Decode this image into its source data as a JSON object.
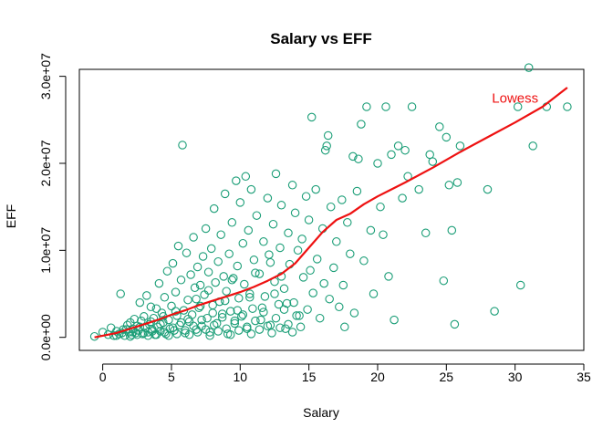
{
  "colors": {
    "points": "#1b9e77",
    "lowess": "#ee1111",
    "axis": "#000000"
  },
  "chart_data": {
    "type": "scatter",
    "title": "Salary vs EFF",
    "xlabel": "Salary",
    "ylabel": "EFF",
    "xlim": [
      -1.7,
      35.0
    ],
    "ylim": [
      -1500000,
      30800000
    ],
    "x_ticks": [
      0,
      5,
      10,
      15,
      20,
      25,
      30,
      35
    ],
    "x_tick_labels": [
      "0",
      "5",
      "10",
      "15",
      "20",
      "25",
      "30",
      "35"
    ],
    "y_ticks": [
      0,
      10000000,
      20000000,
      30000000
    ],
    "y_tick_labels": [
      "0.0e+00",
      "1.0e+07",
      "2.0e+07",
      "3.0e+07"
    ],
    "grid": false,
    "annotations": [
      {
        "text": "Lowess",
        "x": 30.0,
        "y": 27500000
      }
    ],
    "series": [
      {
        "kind": "points",
        "points": [
          [
            -0.6,
            100000.0
          ],
          [
            0.0,
            600000.0
          ],
          [
            0.4,
            300000.0
          ],
          [
            0.6,
            1100000.0
          ],
          [
            0.8,
            200000.0
          ],
          [
            1.0,
            700000.0
          ],
          [
            1.2,
            400000.0
          ],
          [
            1.3,
            5000000.0
          ],
          [
            1.5,
            900000.0
          ],
          [
            1.6,
            200000.0
          ],
          [
            1.8,
            1400000.0
          ],
          [
            1.9,
            600000.0
          ],
          [
            2.0,
            1700000.0
          ],
          [
            2.1,
            300000.0
          ],
          [
            2.2,
            1000000.0
          ],
          [
            2.3,
            2100000.0
          ],
          [
            2.4,
            500000.0
          ],
          [
            2.5,
            1300000.0
          ],
          [
            2.6,
            800000.0
          ],
          [
            2.7,
            4000000.0
          ],
          [
            2.8,
            1900000.0
          ],
          [
            2.9,
            400000.0
          ],
          [
            3.0,
            2400000.0
          ],
          [
            3.1,
            1100000.0
          ],
          [
            3.2,
            4800000.0
          ],
          [
            3.3,
            600000.0
          ],
          [
            3.4,
            1500000.0
          ],
          [
            3.5,
            3500000.0
          ],
          [
            3.6,
            900000.0
          ],
          [
            3.7,
            2200000.0
          ],
          [
            3.8,
            300000.0
          ],
          [
            3.9,
            3300000.0
          ],
          [
            4.0,
            1200000.0
          ],
          [
            4.1,
            6200000.0
          ],
          [
            4.2,
            700000.0
          ],
          [
            4.3,
            2800000.0
          ],
          [
            4.4,
            1700000.0
          ],
          [
            4.5,
            4600000.0
          ],
          [
            4.6,
            400000.0
          ],
          [
            4.7,
            7600000.0
          ],
          [
            4.8,
            2000000.0
          ],
          [
            4.9,
            1000000.0
          ],
          [
            5.0,
            3600000.0
          ],
          [
            5.1,
            8500000.0
          ],
          [
            5.2,
            800000.0
          ],
          [
            5.3,
            5200000.0
          ],
          [
            5.4,
            2500000.0
          ],
          [
            5.5,
            10500000.0
          ],
          [
            5.6,
            1400000.0
          ],
          [
            5.7,
            6600000.0
          ],
          [
            5.8,
            22100000.0
          ],
          [
            5.9,
            3100000.0
          ],
          [
            6.0,
            500000.0
          ],
          [
            6.1,
            9700000.0
          ],
          [
            6.2,
            4300000.0
          ],
          [
            6.3,
            1800000.0
          ],
          [
            6.4,
            7200000.0
          ],
          [
            6.5,
            2600000.0
          ],
          [
            6.6,
            11500000.0
          ],
          [
            6.7,
            5700000.0
          ],
          [
            6.8,
            900000.0
          ],
          [
            6.9,
            8100000.0
          ],
          [
            7.0,
            3400000.0
          ],
          [
            7.1,
            6000000.0
          ],
          [
            7.2,
            1300000.0
          ],
          [
            7.3,
            9300000.0
          ],
          [
            7.4,
            4900000.0
          ],
          [
            7.5,
            12500000.0
          ],
          [
            7.6,
            2200000.0
          ],
          [
            7.7,
            7500000.0
          ],
          [
            7.8,
            600000.0
          ],
          [
            7.9,
            10200000.0
          ],
          [
            8.0,
            3700000.0
          ],
          [
            8.1,
            14800000.0
          ],
          [
            8.2,
            6300000.0
          ],
          [
            8.3,
            1600000.0
          ],
          [
            8.4,
            8700000.0
          ],
          [
            8.5,
            4100000.0
          ],
          [
            8.6,
            11800000.0
          ],
          [
            8.7,
            2700000.0
          ],
          [
            8.8,
            7000000.0
          ],
          [
            8.9,
            16500000.0
          ],
          [
            9.0,
            5300000.0
          ],
          [
            9.1,
            400000.0
          ],
          [
            9.2,
            9600000.0
          ],
          [
            9.3,
            3000000.0
          ],
          [
            9.4,
            13200000.0
          ],
          [
            9.5,
            6800000.0
          ],
          [
            9.6,
            1900000.0
          ],
          [
            9.7,
            18000000.0
          ],
          [
            9.8,
            8200000.0
          ],
          [
            9.9,
            4500000.0
          ],
          [
            10.0,
            15500000.0
          ],
          [
            10.1,
            2400000.0
          ],
          [
            10.2,
            10800000.0
          ],
          [
            10.3,
            6100000.0
          ],
          [
            10.4,
            18500000.0
          ],
          [
            10.5,
            1000000.0
          ],
          [
            10.6,
            12300000.0
          ],
          [
            10.7,
            5000000.0
          ],
          [
            10.8,
            17000000.0
          ],
          [
            10.9,
            3300000.0
          ],
          [
            11.0,
            8900000.0
          ],
          [
            11.2,
            14000000.0
          ],
          [
            11.4,
            7300000.0
          ],
          [
            11.5,
            2000000.0
          ],
          [
            11.7,
            11000000.0
          ],
          [
            11.8,
            4700000.0
          ],
          [
            12.0,
            16000000.0
          ],
          [
            12.1,
            9500000.0
          ],
          [
            12.2,
            1400000.0
          ],
          [
            12.4,
            13000000.0
          ],
          [
            12.5,
            6400000.0
          ],
          [
            12.6,
            18800000.0
          ],
          [
            12.8,
            3800000.0
          ],
          [
            12.9,
            10300000.0
          ],
          [
            13.0,
            15200000.0
          ],
          [
            13.2,
            5600000.0
          ],
          [
            13.3,
            1000000.0
          ],
          [
            13.5,
            12000000.0
          ],
          [
            13.6,
            8400000.0
          ],
          [
            13.8,
            17500000.0
          ],
          [
            13.9,
            4000000.0
          ],
          [
            14.0,
            14300000.0
          ],
          [
            14.2,
            10000000.0
          ],
          [
            14.3,
            2500000.0
          ],
          [
            14.5,
            11300000.0
          ],
          [
            14.6,
            6900000.0
          ],
          [
            14.8,
            16200000.0
          ],
          [
            14.9,
            3200000.0
          ],
          [
            15.0,
            13500000.0
          ],
          [
            15.1,
            7700000.0
          ],
          [
            15.2,
            25300000.0
          ],
          [
            15.3,
            5100000.0
          ],
          [
            15.5,
            17000000.0
          ],
          [
            15.6,
            9000000.0
          ],
          [
            15.8,
            2200000.0
          ],
          [
            16.0,
            12500000.0
          ],
          [
            16.1,
            6200000.0
          ],
          [
            16.2,
            21500000.0
          ],
          [
            16.3,
            22000000.0
          ],
          [
            16.4,
            23200000.0
          ],
          [
            16.5,
            4400000.0
          ],
          [
            16.6,
            15000000.0
          ],
          [
            16.8,
            8000000.0
          ],
          [
            17.0,
            11000000.0
          ],
          [
            17.2,
            3500000.0
          ],
          [
            17.4,
            15800000.0
          ],
          [
            17.5,
            6000000.0
          ],
          [
            17.6,
            1200000.0
          ],
          [
            17.8,
            13200000.0
          ],
          [
            18.0,
            9600000.0
          ],
          [
            18.2,
            20800000.0
          ],
          [
            18.3,
            2800000.0
          ],
          [
            18.5,
            16800000.0
          ],
          [
            18.6,
            20500000.0
          ],
          [
            18.8,
            24500000.0
          ],
          [
            19.0,
            8800000.0
          ],
          [
            19.2,
            26500000.0
          ],
          [
            19.5,
            12300000.0
          ],
          [
            19.7,
            5000000.0
          ],
          [
            20.0,
            20000000.0
          ],
          [
            20.2,
            15000000.0
          ],
          [
            20.4,
            11800000.0
          ],
          [
            20.6,
            26500000.0
          ],
          [
            20.8,
            7000000.0
          ],
          [
            21.0,
            21000000.0
          ],
          [
            21.2,
            2000000.0
          ],
          [
            21.5,
            22000000.0
          ],
          [
            21.8,
            16000000.0
          ],
          [
            22.0,
            21500000.0
          ],
          [
            22.2,
            18500000.0
          ],
          [
            22.5,
            26500000.0
          ],
          [
            23.0,
            17000000.0
          ],
          [
            23.5,
            12000000.0
          ],
          [
            23.8,
            21000000.0
          ],
          [
            24.0,
            20200000.0
          ],
          [
            24.5,
            24200000.0
          ],
          [
            24.8,
            6500000.0
          ],
          [
            25.0,
            23000000.0
          ],
          [
            25.2,
            17500000.0
          ],
          [
            25.4,
            12300000.0
          ],
          [
            25.6,
            1500000.0
          ],
          [
            25.8,
            17800000.0
          ],
          [
            26.0,
            22000000.0
          ],
          [
            28.0,
            17000000.0
          ],
          [
            28.5,
            3000000.0
          ],
          [
            30.2,
            26500000.0
          ],
          [
            30.4,
            6000000.0
          ],
          [
            31.0,
            31000000.0
          ],
          [
            31.3,
            22000000.0
          ],
          [
            32.3,
            26500000.0
          ],
          [
            33.8,
            26500000.0
          ],
          [
            1.0,
            200000.0
          ],
          [
            1.4,
            500000.0
          ],
          [
            1.7,
            900000.0
          ],
          [
            2.0,
            100000.0
          ],
          [
            2.2,
            600000.0
          ],
          [
            2.5,
            300000.0
          ],
          [
            2.7,
            1200000.0
          ],
          [
            3.0,
            500000.0
          ],
          [
            3.3,
            200000.0
          ],
          [
            3.6,
            700000.0
          ],
          [
            3.9,
            300000.0
          ],
          [
            4.2,
            1500000.0
          ],
          [
            4.5,
            600000.0
          ],
          [
            4.8,
            200000.0
          ],
          [
            5.1,
            1100000.0
          ],
          [
            5.4,
            400000.0
          ],
          [
            5.7,
            1700000.0
          ],
          [
            6.0,
            800000.0
          ],
          [
            6.3,
            300000.0
          ],
          [
            6.6,
            1300000.0
          ],
          [
            6.9,
            600000.0
          ],
          [
            7.2,
            2000000.0
          ],
          [
            7.5,
            900000.0
          ],
          [
            7.8,
            200000.0
          ],
          [
            8.1,
            1400000.0
          ],
          [
            8.4,
            700000.0
          ],
          [
            8.7,
            2300000.0
          ],
          [
            9.0,
            1000000.0
          ],
          [
            9.3,
            300000.0
          ],
          [
            9.6,
            1600000.0
          ],
          [
            9.9,
            800000.0
          ],
          [
            10.2,
            2600000.0
          ],
          [
            10.5,
            1200000.0
          ],
          [
            10.8,
            400000.0
          ],
          [
            11.1,
            1900000.0
          ],
          [
            11.4,
            900000.0
          ],
          [
            11.7,
            2900000.0
          ],
          [
            12.0,
            1300000.0
          ],
          [
            12.3,
            500000.0
          ],
          [
            12.6,
            2200000.0
          ],
          [
            12.9,
            1100000.0
          ],
          [
            13.2,
            3200000.0
          ],
          [
            13.5,
            1500000.0
          ],
          [
            13.8,
            600000.0
          ],
          [
            14.1,
            2500000.0
          ],
          [
            14.4,
            1200000.0
          ],
          [
            3.5,
            1800000.0
          ],
          [
            4.4,
            2400000.0
          ],
          [
            5.3,
            3000000.0
          ],
          [
            6.2,
            2100000.0
          ],
          [
            7.1,
            3600000.0
          ],
          [
            8.0,
            2800000.0
          ],
          [
            8.9,
            4200000.0
          ],
          [
            9.8,
            3100000.0
          ],
          [
            10.7,
            4600000.0
          ],
          [
            11.6,
            3400000.0
          ],
          [
            12.5,
            5000000.0
          ],
          [
            13.4,
            3900000.0
          ],
          [
            6.8,
            4400000.0
          ],
          [
            7.7,
            5400000.0
          ],
          [
            9.4,
            6600000.0
          ],
          [
            11.1,
            7400000.0
          ],
          [
            12.2,
            8600000.0
          ],
          [
            13.0,
            7000000.0
          ]
        ]
      },
      {
        "kind": "line",
        "points": [
          [
            -0.6,
            0.0
          ],
          [
            1.0,
            500000.0
          ],
          [
            2.0,
            1000000.0
          ],
          [
            3.0,
            1500000.0
          ],
          [
            4.0,
            2000000.0
          ],
          [
            5.0,
            2600000.0
          ],
          [
            6.0,
            3100000.0
          ],
          [
            7.0,
            3700000.0
          ],
          [
            8.0,
            4200000.0
          ],
          [
            9.0,
            4700000.0
          ],
          [
            10.0,
            5200000.0
          ],
          [
            11.0,
            5800000.0
          ],
          [
            12.0,
            6500000.0
          ],
          [
            13.0,
            7300000.0
          ],
          [
            14.0,
            8500000.0
          ],
          [
            15.0,
            10300000.0
          ],
          [
            16.0,
            12100000.0
          ],
          [
            17.0,
            13500000.0
          ],
          [
            18.0,
            14200000.0
          ],
          [
            19.0,
            15300000.0
          ],
          [
            20.0,
            16200000.0
          ],
          [
            21.0,
            17000000.0
          ],
          [
            22.0,
            17800000.0
          ],
          [
            24.0,
            19500000.0
          ],
          [
            26.0,
            21300000.0
          ],
          [
            28.0,
            23000000.0
          ],
          [
            30.0,
            24700000.0
          ],
          [
            32.0,
            26500000.0
          ],
          [
            33.8,
            28700000.0
          ]
        ]
      }
    ]
  }
}
